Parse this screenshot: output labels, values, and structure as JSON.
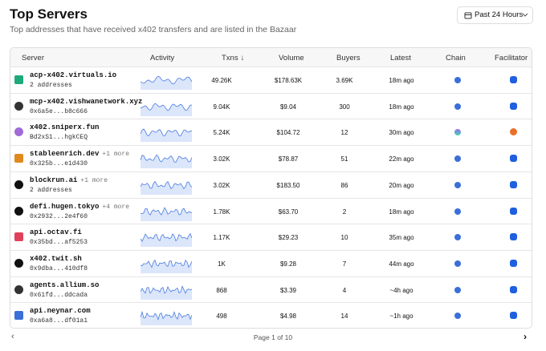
{
  "header": {
    "title": "Top Servers",
    "subtitle": "Top addresses that have received x402 transfers and are listed in the Bazaar"
  },
  "filter": {
    "label": "Past 24 Hours"
  },
  "table": {
    "columns": [
      "Server",
      "Activity",
      "Txns",
      "Volume",
      "Buyers",
      "Latest",
      "Chain",
      "Facilitator"
    ],
    "rows": [
      {
        "name": "acp-x402.virtuals.io",
        "address": "2 addresses",
        "txns": "49.26K",
        "volume": "$178.63K",
        "buyers": "3.69K",
        "latest": "18m ago"
      },
      {
        "name": "mcp-x402.vishwanetwork.xyz",
        "address": "0x6a5e...b8c666",
        "txns": "9.04K",
        "volume": "$9.04",
        "buyers": "300",
        "latest": "18m ago"
      },
      {
        "name": "x402.sniperx.fun",
        "address": "Bd2xS1...hgkCEQ",
        "txns": "5.24K",
        "volume": "$104.72",
        "buyers": "12",
        "latest": "30m ago"
      },
      {
        "name": "stableenrich.dev",
        "more": "+1 more",
        "address": "0x325b...e1d430",
        "txns": "3.02K",
        "volume": "$78.87",
        "buyers": "51",
        "latest": "22m ago"
      },
      {
        "name": "blockrun.ai",
        "more": "+1 more",
        "address": "2 addresses",
        "txns": "3.02K",
        "volume": "$183.50",
        "buyers": "86",
        "latest": "20m ago"
      },
      {
        "name": "defi.hugen.tokyo",
        "more": "+4 more",
        "address": "0x2932...2e4f60",
        "txns": "1.78K",
        "volume": "$63.70",
        "buyers": "2",
        "latest": "18m ago"
      },
      {
        "name": "api.octav.fi",
        "address": "0x35bd...af5253",
        "txns": "1.17K",
        "volume": "$29.23",
        "buyers": "10",
        "latest": "35m ago"
      },
      {
        "name": "x402.twit.sh",
        "address": "0x9dba...410df8",
        "txns": "1K",
        "volume": "$9.28",
        "buyers": "7",
        "latest": "44m ago"
      },
      {
        "name": "agents.allium.so",
        "address": "0x61fd...ddcada",
        "txns": "868",
        "volume": "$3.39",
        "buyers": "4",
        "latest": "~4h ago"
      },
      {
        "name": "api.neynar.com",
        "address": "0xa6a8...df01a1",
        "txns": "498",
        "volume": "$4.98",
        "buyers": "14",
        "latest": "~1h ago"
      }
    ]
  },
  "pagination": {
    "label": "Page 1 of 10"
  }
}
